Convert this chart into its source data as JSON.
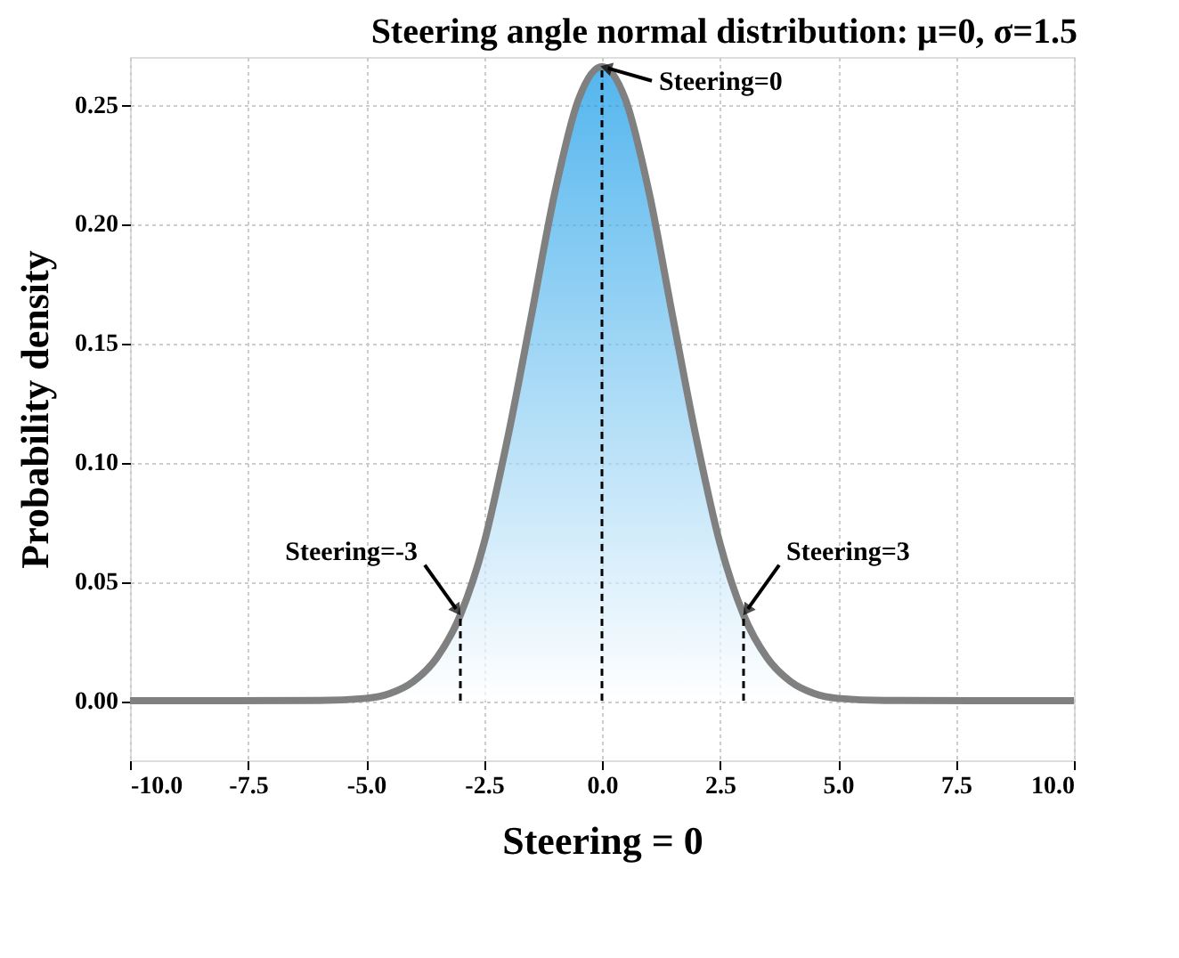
{
  "chart_data": {
    "type": "area",
    "title": "Steering angle normal distribution: μ=0, σ=1.5",
    "xlabel": "Steering = 0",
    "ylabel": "Probability density",
    "xlim": [
      -10,
      10
    ],
    "xticks": [
      {
        "value": -10,
        "label": "-10.0"
      },
      {
        "value": -7.5,
        "label": "-7.5"
      },
      {
        "value": -5,
        "label": "-5.0"
      },
      {
        "value": -2.5,
        "label": "-2.5"
      },
      {
        "value": 0,
        "label": "0.0"
      },
      {
        "value": 2.5,
        "label": "2.5"
      },
      {
        "value": 5,
        "label": "5.0"
      },
      {
        "value": 7.5,
        "label": "7.5"
      },
      {
        "value": 10,
        "label": "10.0"
      }
    ],
    "ylim": [
      -0.025,
      0.27
    ],
    "yticks": [
      {
        "value": 0,
        "label": "0.00"
      },
      {
        "value": 0.05,
        "label": "0.05"
      },
      {
        "value": 0.1,
        "label": "0.10"
      },
      {
        "value": 0.15,
        "label": "0.15"
      },
      {
        "value": 0.2,
        "label": "0.20"
      },
      {
        "value": 0.25,
        "label": "0.25"
      }
    ],
    "grid": true,
    "series": [
      {
        "color": "#0a96e6",
        "x": [
          -10,
          -6,
          -5,
          -4.5,
          -4,
          -3.5,
          -3,
          -2.5,
          -2,
          -1.5,
          -1,
          -0.5,
          0,
          0.5,
          1,
          1.5,
          2,
          2.5,
          3,
          3.5,
          4,
          4.5,
          5,
          6,
          10
        ],
        "values": [
          0,
          0.0001,
          0.001,
          0.003,
          0.008,
          0.018,
          0.036,
          0.066,
          0.11,
          0.161,
          0.213,
          0.252,
          0.266,
          0.252,
          0.213,
          0.161,
          0.11,
          0.066,
          0.036,
          0.018,
          0.008,
          0.003,
          0.001,
          0.0001,
          0
        ]
      },
      {
        "type": "line",
        "color": "#000000",
        "line_style": "dashed",
        "x": [
          -3,
          -3
        ],
        "values": [
          0,
          0.036
        ]
      },
      {
        "type": "line",
        "color": "#000000",
        "line_style": "dashed",
        "x": [
          0,
          0
        ],
        "values": [
          0,
          0.266
        ]
      },
      {
        "type": "line",
        "color": "#000000",
        "line_style": "dashed",
        "x": [
          3,
          3
        ],
        "values": [
          0,
          0.036
        ]
      }
    ],
    "annotations": [
      {
        "text": "Steering=0",
        "x": 0,
        "y": 0.266
      },
      {
        "text": "Steering=-3",
        "x": -3,
        "y": 0.036
      },
      {
        "text": "Steering=3",
        "x": 3,
        "y": 0.036
      }
    ]
  }
}
